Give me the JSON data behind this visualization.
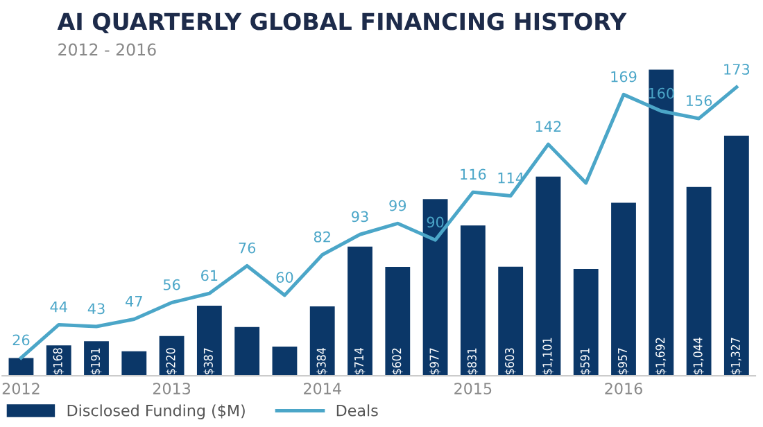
{
  "chart_data": {
    "type": "bar",
    "title": "AI QUARTERLY GLOBAL FINANCING HISTORY",
    "subtitle": "2012 - 2016",
    "categories": [
      "2012",
      null,
      null,
      null,
      "2013",
      null,
      null,
      null,
      "2014",
      null,
      null,
      null,
      "2015",
      null,
      null,
      null,
      "2016",
      null,
      null,
      null
    ],
    "series": [
      {
        "name": "Disclosed Funding ($M)",
        "color": "#0b3768",
        "values": [
          98,
          168,
          191,
          135,
          220,
          387,
          270,
          161,
          384,
          714,
          602,
          977,
          831,
          603,
          1101,
          591,
          957,
          1692,
          1044,
          1327
        ],
        "value_labels": [
          null,
          "$168",
          "$191",
          null,
          "$220",
          "$387",
          null,
          null,
          "$384",
          "$714",
          "$602",
          "$977",
          "$831",
          "$603",
          "$1,101",
          "$591",
          "$957",
          "$1,692",
          "$1,044",
          "$1,327"
        ]
      },
      {
        "name": "Deals",
        "type": "line",
        "axis": "y2",
        "color": "#4ba6c8",
        "values": [
          26,
          44,
          43,
          47,
          56,
          61,
          76,
          60,
          82,
          93,
          99,
          90,
          116,
          114,
          142,
          121,
          169,
          160,
          156,
          173
        ],
        "value_labels": [
          "26",
          "44",
          "43",
          "47",
          "56",
          "61",
          "76",
          "60",
          "82",
          "93",
          "99",
          "90",
          "116",
          "114",
          "142",
          null,
          "169",
          "160",
          "156",
          "173"
        ]
      }
    ],
    "legend": "bottom left",
    "grid": false,
    "tick_labels": "x"
  }
}
